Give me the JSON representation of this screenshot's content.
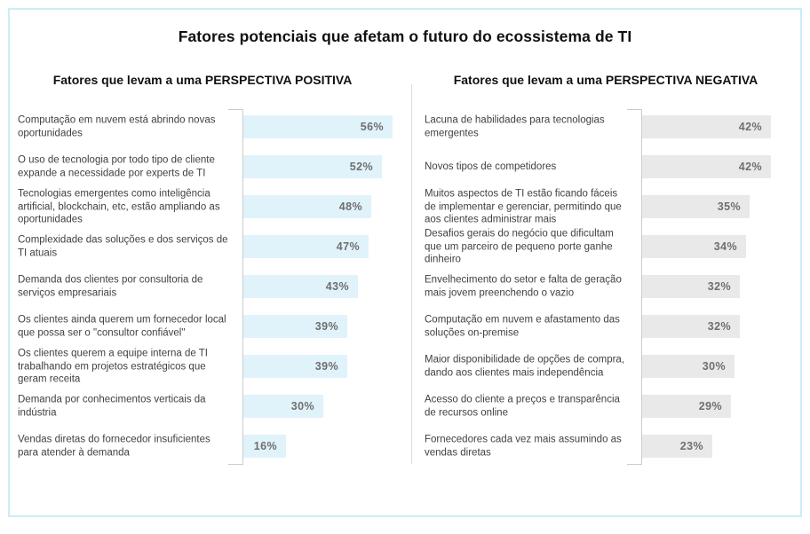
{
  "page": {
    "title": "Fatores potenciais que afetam o futuro do ecossistema de TI",
    "border_color": "#cdecf9",
    "background": "#ffffff"
  },
  "chart_data": [
    {
      "type": "bar",
      "orientation": "horizontal",
      "title": "Fatores que levam a uma PERSPECTIVA POSITIVA",
      "categories": [
        "Computação em nuvem está abrindo novas oportunidades",
        "O uso de tecnologia por todo tipo de cliente expande a necessidade por experts de TI",
        "Tecnologias emergentes como inteligência artificial, blockchain, etc, estão ampliando as oportunidades",
        "Complexidade das soluções e dos serviços de TI atuais",
        "Demanda dos clientes por consultoria de serviços empresariais",
        "Os clientes ainda querem um fornecedor local que possa ser o \"consultor confiável\"",
        "Os clientes querem a equipe interna de TI trabalhando em projetos estratégicos que geram receita",
        "Demanda por conhecimentos verticais da indústria",
        "Vendas diretas do fornecedor insuficientes para atender à demanda"
      ],
      "values": [
        56,
        52,
        48,
        47,
        43,
        39,
        39,
        30,
        16
      ],
      "value_suffix": "%",
      "xlim": [
        0,
        60
      ],
      "grid": false,
      "legend": false,
      "bar_color": "#e0f3fb",
      "value_label_color": "#6f6f6f"
    },
    {
      "type": "bar",
      "orientation": "horizontal",
      "title": "Fatores que levam a uma PERSPECTIVA NEGATIVA",
      "categories": [
        "Lacuna de habilidades para tecnologias emergentes",
        "Novos tipos de competidores",
        "Muitos aspectos de TI estão ficando fáceis de implementar e gerenciar, permitindo que aos clientes administrar mais",
        "Desafios gerais do negócio que dificultam que um parceiro de pequeno porte ganhe dinheiro",
        "Envelhecimento do setor e falta de geração mais jovem preenchendo o vazio",
        "Computação em nuvem e afastamento das soluções on-premise",
        "Maior disponibilidade de opções de compra, dando aos clientes mais independência",
        "Acesso do cliente a preços e transparência de recursos online",
        "Fornecedores cada vez mais assumindo as vendas diretas"
      ],
      "values": [
        42,
        42,
        35,
        34,
        32,
        32,
        30,
        29,
        23
      ],
      "value_suffix": "%",
      "xlim": [
        0,
        52
      ],
      "grid": false,
      "legend": false,
      "bar_color": "#e9e9e9",
      "value_label_color": "#6f6f6f"
    }
  ]
}
